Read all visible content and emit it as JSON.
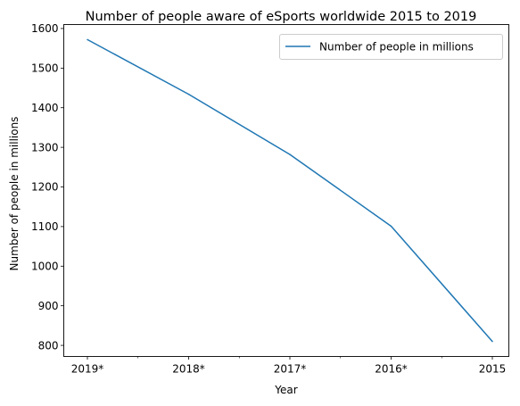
{
  "chart_data": {
    "type": "line",
    "title": "Number of people aware of eSports worldwide 2015 to 2019",
    "xlabel": "Year",
    "ylabel": "Number of people in millions",
    "categories": [
      "2019*",
      "2018*",
      "2017*",
      "2016*",
      "2015"
    ],
    "series": [
      {
        "name": "Number of people in millions",
        "color": "#1f77b4",
        "values": [
          1572,
          1434,
          1282,
          1101,
          810
        ]
      }
    ],
    "y_ticks": [
      800,
      900,
      1000,
      1100,
      1200,
      1300,
      1400,
      1500,
      1600
    ],
    "ylim": [
      772,
      1610
    ],
    "grid": false,
    "legend_position": "upper right"
  }
}
